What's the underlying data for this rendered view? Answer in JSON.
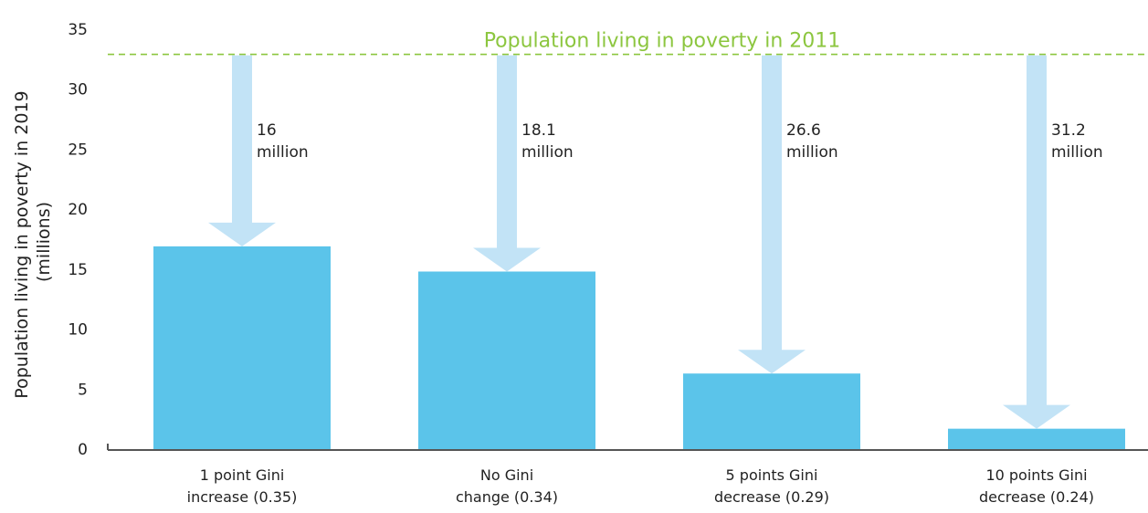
{
  "chart_data": {
    "type": "bar",
    "ylabel_line1": "Population living in poverty in 2019",
    "ylabel_line2": "(millions)",
    "ylim": [
      0,
      35
    ],
    "yticks": [
      0,
      5,
      10,
      15,
      20,
      25,
      30,
      35
    ],
    "categories": [
      [
        "1 point Gini",
        "increase (0.35)"
      ],
      [
        "No Gini",
        "change (0.34)"
      ],
      [
        "5 points Gini",
        "decrease (0.29)"
      ],
      [
        "10 points Gini",
        "decrease (0.24)"
      ]
    ],
    "values": [
      16.9,
      14.8,
      6.3,
      1.7
    ],
    "reference_line": {
      "label": "Population living in poverty in 2011",
      "value": 32.9
    },
    "arrows": [
      {
        "value_line1": "16",
        "value_line2": "million"
      },
      {
        "value_line1": "18.1",
        "value_line2": "million"
      },
      {
        "value_line1": "26.6",
        "value_line2": "million"
      },
      {
        "value_line1": "31.2",
        "value_line2": "million"
      }
    ],
    "grid": false
  },
  "colors": {
    "bar": "#5bc4ea",
    "arrow": "#c2e3f6",
    "reference": "#8cc63f",
    "axis": "#555555"
  }
}
